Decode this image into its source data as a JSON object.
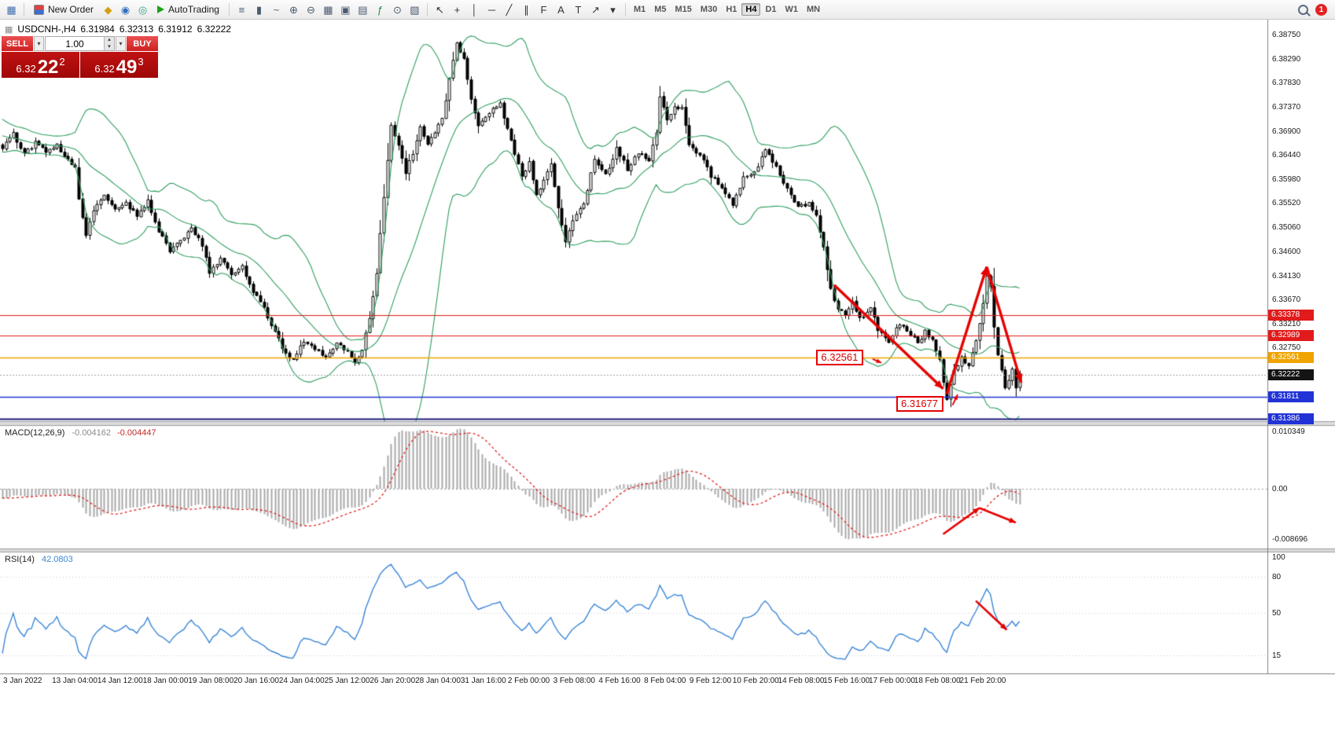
{
  "toolbar": {
    "new_order": {
      "label": "New Order"
    },
    "autotrading": {
      "label": "AutoTrading"
    },
    "left_icons": [
      {
        "name": "new-chart-icon",
        "glyph": "▦",
        "color": "#3f6fae"
      }
    ],
    "mid_icons": [
      {
        "name": "metaeditor-icon",
        "glyph": "◆",
        "color": "#d4a017"
      },
      {
        "name": "market-watch-icon",
        "glyph": "◉",
        "color": "#2f6fc0"
      },
      {
        "name": "data-window-icon",
        "glyph": "◎",
        "color": "#2f9f7f"
      }
    ],
    "chart_icons": [
      {
        "name": "bar-chart-icon",
        "glyph": "≡",
        "color": "#4a5a70"
      },
      {
        "name": "candlestick-chart-icon",
        "glyph": "▮",
        "color": "#4a5a70"
      },
      {
        "name": "line-chart-icon",
        "glyph": "~",
        "color": "#4a5a70"
      },
      {
        "name": "zoom-in-icon",
        "glyph": "⊕",
        "color": "#4a5a70"
      },
      {
        "name": "zoom-out-icon",
        "glyph": "⊖",
        "color": "#4a5a70"
      },
      {
        "name": "tile-windows-icon",
        "glyph": "▦",
        "color": "#4a5a70"
      },
      {
        "name": "cascade-windows-icon",
        "glyph": "▣",
        "color": "#4a5a70"
      },
      {
        "name": "arrange-windows-icon",
        "glyph": "▤",
        "color": "#4a5a70"
      },
      {
        "name": "indicators-icon",
        "glyph": "ƒ",
        "color": "#1f8f3f"
      },
      {
        "name": "period-icon",
        "glyph": "⊙",
        "color": "#4a5a70"
      },
      {
        "name": "templates-icon",
        "glyph": "▨",
        "color": "#4a5a70"
      }
    ],
    "object_icons": [
      {
        "name": "cursor-icon",
        "glyph": "↖",
        "color": "#333333"
      },
      {
        "name": "crosshair-icon",
        "glyph": "+",
        "color": "#333333"
      },
      {
        "name": "vertical-line-icon",
        "glyph": "│",
        "color": "#333333"
      },
      {
        "name": "horizontal-line-icon",
        "glyph": "─",
        "color": "#333333"
      },
      {
        "name": "trendline-icon",
        "glyph": "╱",
        "color": "#333333"
      },
      {
        "name": "channel-icon",
        "glyph": "∥",
        "color": "#333333"
      },
      {
        "name": "fibonacci-icon",
        "glyph": "F",
        "color": "#333333"
      },
      {
        "name": "text-icon",
        "glyph": "A",
        "color": "#333333"
      },
      {
        "name": "label-icon",
        "glyph": "T",
        "color": "#333333"
      },
      {
        "name": "arrows-icon",
        "glyph": "↗",
        "color": "#333333"
      },
      {
        "name": "objects-dropdown-icon",
        "glyph": "▾",
        "color": "#333333"
      }
    ],
    "timeframes": [
      "M1",
      "M5",
      "M15",
      "M30",
      "H1",
      "H4",
      "D1",
      "W1",
      "MN"
    ],
    "active_timeframe": "H4",
    "notification_count": "1"
  },
  "glyphs": {
    "chart_title_icon": "▦",
    "dropdown": "▾",
    "spin_up": "▴",
    "spin_down": "▾"
  },
  "ohlc_title": {
    "symbol_period": "USDCNH-,H4",
    "open": "6.31984",
    "high": "6.32313",
    "low": "6.31912",
    "close": "6.32222"
  },
  "trade_panel": {
    "sell_label": "SELL",
    "buy_label": "BUY",
    "volume": "1.00",
    "sell_price": {
      "big": "6.32",
      "pips": "22",
      "frac": "2"
    },
    "buy_price": {
      "big": "6.32",
      "pips": "49",
      "frac": "3"
    }
  },
  "macd_pane": {
    "label": "MACD(12,26,9)",
    "value": "-0.004162",
    "signal_value": "-0.004447",
    "axis_ticks": [
      "0.010349",
      "0.00",
      "-0.008696"
    ]
  },
  "rsi_pane": {
    "label": "RSI(14)",
    "value": "42.0803",
    "axis_ticks": [
      "100",
      "80",
      "50",
      "15"
    ]
  },
  "price_axis": {
    "ticks": [
      "6.38750",
      "6.38290",
      "6.37830",
      "6.37370",
      "6.36900",
      "6.36440",
      "6.35980",
      "6.35520",
      "6.35060",
      "6.34600",
      "6.34130",
      "6.33670",
      "6.33210",
      "6.32750"
    ],
    "badges": [
      {
        "text": "6.33378",
        "bg": "#e11b1b"
      },
      {
        "text": "6.32989",
        "bg": "#e11b1b"
      },
      {
        "text": "6.32561",
        "bg": "#efa400"
      },
      {
        "text": "6.32222",
        "bg": "#141414"
      },
      {
        "text": "6.31811",
        "bg": "#2133d6"
      },
      {
        "text": "6.31386",
        "bg": "#2133d6"
      }
    ]
  },
  "time_axis": {
    "labels": [
      "3 Jan 2022",
      "13 Jan 04:00",
      "14 Jan 12:00",
      "18 Jan 00:00",
      "19 Jan 08:00",
      "20 Jan 16:00",
      "24 Jan 04:00",
      "25 Jan 12:00",
      "26 Jan 20:00",
      "28 Jan 04:00",
      "31 Jan 16:00",
      "2 Feb 00:00",
      "3 Feb 08:00",
      "4 Feb 16:00",
      "8 Feb 04:00",
      "9 Feb 12:00",
      "10 Feb 20:00",
      "14 Feb 08:00",
      "15 Feb 16:00",
      "17 Feb 00:00",
      "18 Feb 08:00",
      "21 Feb 20:00"
    ]
  },
  "annotations": {
    "color": "#e60000",
    "price_flags": [
      {
        "text": "6.32561",
        "i": 224,
        "price": 6.32561,
        "target": {
          "i": 242,
          "price": 6.3246
        }
      },
      {
        "text": "6.31677",
        "i": 246,
        "price": 6.31677,
        "target": {
          "i": 263,
          "price": 6.3185
        }
      }
    ],
    "main_arrows": [
      [
        [
          229,
          6.3395
        ],
        [
          259,
          6.3196
        ]
      ],
      [
        [
          260,
          6.3186
        ],
        [
          271,
          6.343
        ]
      ],
      [
        [
          271,
          6.343
        ],
        [
          280.5,
          6.3208
        ]
      ]
    ],
    "macd_arrows": [
      [
        [
          259,
          -0.0078
        ],
        [
          269,
          -0.0033
        ]
      ],
      [
        [
          269,
          -0.0033
        ],
        [
          279,
          -0.0058
        ]
      ]
    ],
    "rsi_arrows": [
      [
        [
          268,
          60
        ],
        [
          276.5,
          36
        ]
      ]
    ]
  },
  "chart_data": {
    "type": "candlestick",
    "symbol": "USDCNH-",
    "timeframe": "H4",
    "title": "USDCNH-,H4 6.31984 6.32313 6.31912 6.32222",
    "last_candle": {
      "open": 6.31984,
      "high": 6.32313,
      "low": 6.31912,
      "close": 6.32222
    },
    "candle_count": 281,
    "warmup": {
      "count": 25,
      "start": 6.372,
      "end": 6.366
    },
    "close_anchors": [
      [
        0,
        6.3655
      ],
      [
        3,
        6.3685
      ],
      [
        6,
        6.3645
      ],
      [
        9,
        6.3668
      ],
      [
        12,
        6.365
      ],
      [
        15,
        6.3662
      ],
      [
        18,
        6.3635
      ],
      [
        20,
        6.3618
      ],
      [
        21,
        6.356
      ],
      [
        23,
        6.3492
      ],
      [
        25,
        6.354
      ],
      [
        28,
        6.3568
      ],
      [
        31,
        6.354
      ],
      [
        34,
        6.3552
      ],
      [
        37,
        6.3528
      ],
      [
        40,
        6.3555
      ],
      [
        43,
        6.35
      ],
      [
        46,
        6.3462
      ],
      [
        49,
        6.348
      ],
      [
        52,
        6.3505
      ],
      [
        55,
        6.347
      ],
      [
        57,
        6.3418
      ],
      [
        60,
        6.3445
      ],
      [
        63,
        6.3415
      ],
      [
        66,
        6.343
      ],
      [
        69,
        6.3382
      ],
      [
        72,
        6.335
      ],
      [
        75,
        6.3305
      ],
      [
        78,
        6.3262
      ],
      [
        80,
        6.325
      ],
      [
        83,
        6.3288
      ],
      [
        86,
        6.3272
      ],
      [
        89,
        6.3258
      ],
      [
        92,
        6.3282
      ],
      [
        95,
        6.3265
      ],
      [
        97,
        6.3245
      ],
      [
        99,
        6.327
      ],
      [
        101,
        6.333
      ],
      [
        103,
        6.342
      ],
      [
        105,
        6.356
      ],
      [
        107,
        6.37
      ],
      [
        109,
        6.3665
      ],
      [
        111,
        6.3612
      ],
      [
        113,
        6.3648
      ],
      [
        115,
        6.3695
      ],
      [
        117,
        6.3662
      ],
      [
        119,
        6.3688
      ],
      [
        121,
        6.3715
      ],
      [
        123,
        6.3788
      ],
      [
        125,
        6.3856
      ],
      [
        127,
        6.3832
      ],
      [
        129,
        6.3748
      ],
      [
        131,
        6.3698
      ],
      [
        134,
        6.3725
      ],
      [
        137,
        6.3742
      ],
      [
        139,
        6.3695
      ],
      [
        141,
        6.3648
      ],
      [
        143,
        6.36
      ],
      [
        145,
        6.363
      ],
      [
        147,
        6.3568
      ],
      [
        149,
        6.3598
      ],
      [
        151,
        6.3625
      ],
      [
        153,
        6.3542
      ],
      [
        155,
        6.348
      ],
      [
        157,
        6.3515
      ],
      [
        160,
        6.3552
      ],
      [
        163,
        6.3635
      ],
      [
        166,
        6.3605
      ],
      [
        169,
        6.3655
      ],
      [
        172,
        6.3618
      ],
      [
        175,
        6.3648
      ],
      [
        178,
        6.3635
      ],
      [
        180,
        6.369
      ],
      [
        181,
        6.3755
      ],
      [
        183,
        6.3712
      ],
      [
        185,
        6.3738
      ],
      [
        187,
        6.3732
      ],
      [
        189,
        6.3662
      ],
      [
        192,
        6.3645
      ],
      [
        195,
        6.3605
      ],
      [
        198,
        6.3582
      ],
      [
        201,
        6.3548
      ],
      [
        204,
        6.3602
      ],
      [
        207,
        6.3608
      ],
      [
        210,
        6.3658
      ],
      [
        213,
        6.3622
      ],
      [
        216,
        6.3578
      ],
      [
        219,
        6.3545
      ],
      [
        222,
        6.3552
      ],
      [
        224,
        6.353
      ],
      [
        226,
        6.3468
      ],
      [
        228,
        6.3388
      ],
      [
        230,
        6.3348
      ],
      [
        232,
        6.3338
      ],
      [
        234,
        6.3365
      ],
      [
        236,
        6.333
      ],
      [
        239,
        6.3352
      ],
      [
        241,
        6.331
      ],
      [
        244,
        6.3288
      ],
      [
        247,
        6.332
      ],
      [
        250,
        6.33
      ],
      [
        252,
        6.3282
      ],
      [
        254,
        6.3305
      ],
      [
        256,
        6.3288
      ],
      [
        258,
        6.325
      ],
      [
        259,
        6.3212
      ],
      [
        260,
        6.3176
      ],
      [
        262,
        6.3228
      ],
      [
        264,
        6.3255
      ],
      [
        266,
        6.3242
      ],
      [
        268,
        6.3288
      ],
      [
        270,
        6.3362
      ],
      [
        271,
        6.3412
      ],
      [
        272,
        6.3392
      ],
      [
        273,
        6.3318
      ],
      [
        274,
        6.3262
      ],
      [
        275,
        6.3228
      ],
      [
        276,
        6.3196
      ],
      [
        277,
        6.3214
      ],
      [
        278,
        6.3238
      ],
      [
        279,
        6.31984
      ],
      [
        280,
        6.32222
      ]
    ],
    "indicators": {
      "bollinger": {
        "period": 20,
        "deviation": 2
      },
      "macd": {
        "fast": 12,
        "slow": 26,
        "signal": 9,
        "value": -0.004162,
        "signal_value": -0.004447,
        "display_max": 0.010349,
        "display_min": -0.008696
      },
      "rsi": {
        "period": 14,
        "value": 42.0803
      }
    },
    "levels": [
      {
        "value": 6.33378,
        "color": "#e11b1b",
        "width": 1
      },
      {
        "value": 6.32989,
        "color": "#e11b1b",
        "width": 1
      },
      {
        "value": 6.32561,
        "color": "#efa400",
        "width": 1.5
      },
      {
        "value": 6.32222,
        "color": "#9aa0a6",
        "width": 1,
        "dash": [
          2,
          2
        ]
      },
      {
        "value": 6.31811,
        "color": "#2236d4",
        "width": 1.5
      },
      {
        "value": 6.31386,
        "color": "#1b1b7a",
        "width": 2
      }
    ],
    "style": {
      "candle_up": "#ffffff",
      "candle_down": "#000000",
      "outline": "#000000",
      "bollinger": "#2f9e5f",
      "macd_hist": "#a9a9a9",
      "macd_signal": "#e02020",
      "rsi": "#3b86d6"
    }
  }
}
